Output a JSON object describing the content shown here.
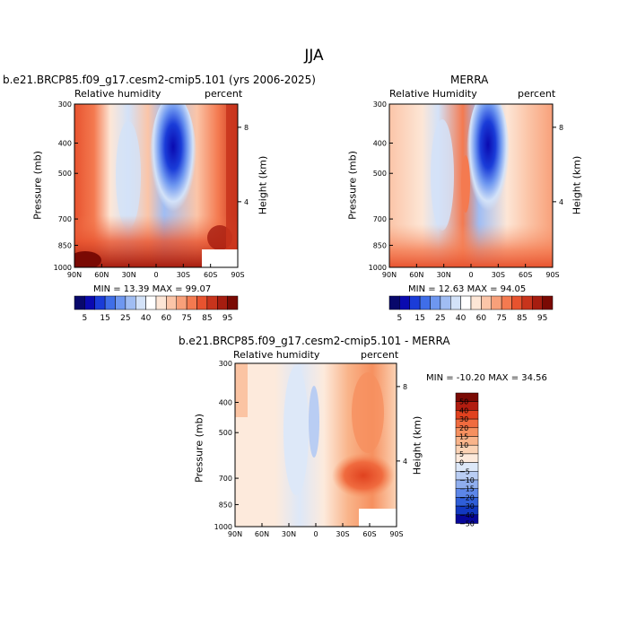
{
  "title": "JJA",
  "panels": [
    {
      "title": "b.e21.BRCP85.f09_g17.cesm2-cmip5.101 (yrs 2006-2025)",
      "left_label": "Relative humidity",
      "right_label": "percent",
      "ylabel": "Pressure (mb)",
      "y2label": "Height (km)",
      "stats": "MIN =   13.39   MAX =   99.07"
    },
    {
      "title": "MERRA",
      "left_label": "Relative Humidity",
      "right_label": "percent",
      "ylabel": "Pressure (mb)",
      "y2label": "Height (km)",
      "stats": "MIN =   12.63   MAX =   94.05"
    },
    {
      "title": "b.e21.BRCP85.f09_g17.cesm2-cmip5.101 - MERRA",
      "left_label": "Relative humidity",
      "right_label": "percent",
      "ylabel": "Pressure (mb)",
      "y2label": "Height (km)",
      "stats": "MIN = -10.20   MAX =   34.56"
    }
  ],
  "chart_data": [
    {
      "type": "heatmap",
      "title": "b.e21.BRCP85.f09_g17.cesm2-cmip5.101 (yrs 2006-2025)",
      "x_tick_labels": [
        "90N",
        "60N",
        "30N",
        "0",
        "30S",
        "60S",
        "90S"
      ],
      "y_tick_labels": [
        "300",
        "400",
        "500",
        "700",
        "850",
        "1000"
      ],
      "y_ticks": [
        300,
        400,
        500,
        700,
        850,
        1000
      ],
      "y2_tick_labels": [
        "8",
        "4"
      ],
      "y2_ticks": [
        8,
        4
      ],
      "ylabel": "Pressure (mb)",
      "y2label": "Height (km)",
      "min": 13.39,
      "max": 99.07,
      "colorbar_labels": [
        "5",
        "15",
        "25",
        "40",
        "60",
        "75",
        "85",
        "95"
      ]
    },
    {
      "type": "heatmap",
      "title": "MERRA",
      "x_tick_labels": [
        "90N",
        "60N",
        "30N",
        "0",
        "30S",
        "60S",
        "90S"
      ],
      "y_tick_labels": [
        "300",
        "400",
        "500",
        "700",
        "850",
        "1000"
      ],
      "y_ticks": [
        300,
        400,
        500,
        700,
        850,
        1000
      ],
      "y2_tick_labels": [
        "8",
        "4"
      ],
      "y2_ticks": [
        8,
        4
      ],
      "ylabel": "Pressure (mb)",
      "y2label": "Height (km)",
      "min": 12.63,
      "max": 94.05,
      "colorbar_labels": [
        "5",
        "15",
        "25",
        "40",
        "60",
        "75",
        "85",
        "95"
      ]
    },
    {
      "type": "heatmap",
      "title": "b.e21.BRCP85.f09_g17.cesm2-cmip5.101 - MERRA",
      "x_tick_labels": [
        "90N",
        "60N",
        "30N",
        "0",
        "30S",
        "60S",
        "90S"
      ],
      "y_tick_labels": [
        "300",
        "400",
        "500",
        "700",
        "850",
        "1000"
      ],
      "y_ticks": [
        300,
        400,
        500,
        700,
        850,
        1000
      ],
      "y2_tick_labels": [
        "8",
        "4"
      ],
      "y2_ticks": [
        8,
        4
      ],
      "ylabel": "Pressure (mb)",
      "y2label": "Height (km)",
      "min": -10.2,
      "max": 34.56,
      "colorbar_labels": [
        "50",
        "40",
        "30",
        "20",
        "15",
        "10",
        "5",
        "0",
        "−5",
        "−10",
        "−15",
        "−20",
        "−30",
        "−40",
        "−50"
      ]
    }
  ],
  "colors": {
    "abs_scale": [
      "#08086b",
      "#0a0ab0",
      "#1a3cd8",
      "#3f6ee8",
      "#6e97f0",
      "#a0bdf3",
      "#d3e2f8",
      "#ffffff",
      "#fde6d6",
      "#fbc5a8",
      "#f8a07a",
      "#f47a50",
      "#e7532f",
      "#c8341c",
      "#a61d10",
      "#7a0a04"
    ],
    "diff_scale": [
      "#7a0a04",
      "#b11d10",
      "#e0421f",
      "#f06b3f",
      "#f6905f",
      "#f9b48a",
      "#fbd3b5",
      "#fdeadc",
      "#dde8f8",
      "#b9cdf3",
      "#8faeee",
      "#5c86e8",
      "#2f5ed8",
      "#1238c0",
      "#07079a"
    ]
  }
}
